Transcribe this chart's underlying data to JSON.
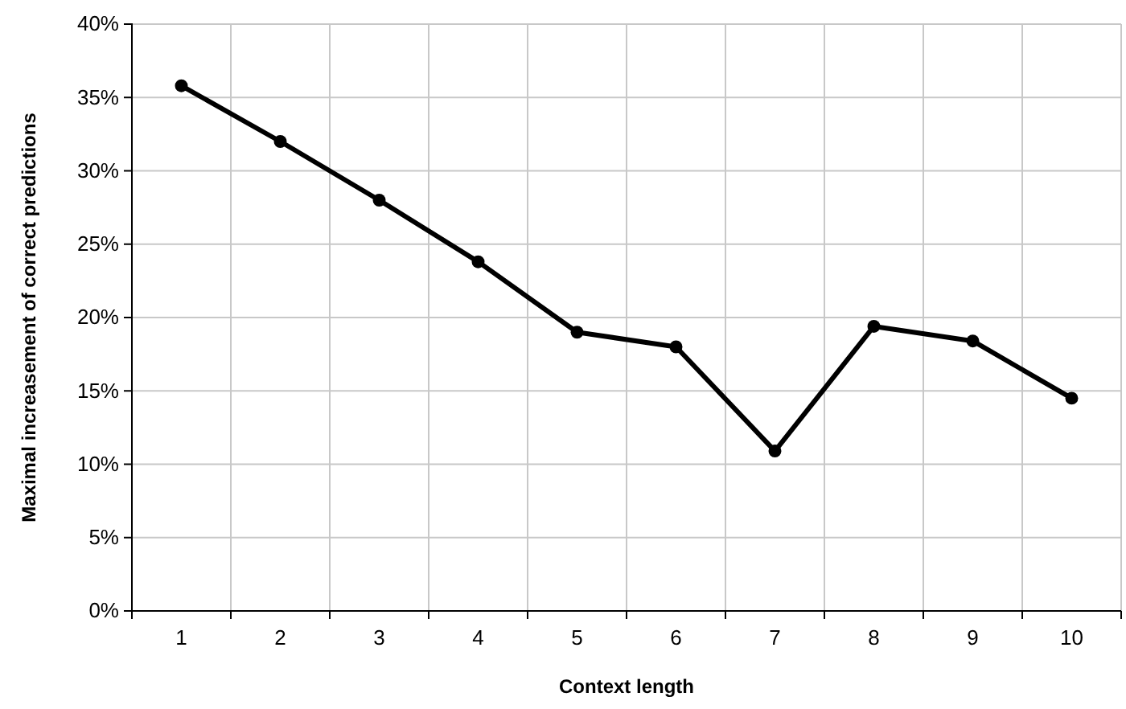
{
  "chart_data": {
    "type": "line",
    "xlabel": "Context length",
    "ylabel": "Maximal increasement of correct predictions",
    "categories": [
      "1",
      "2",
      "3",
      "4",
      "5",
      "6",
      "7",
      "8",
      "9",
      "10"
    ],
    "series": [
      {
        "color": "#000000",
        "values": [
          35.8,
          32,
          28,
          23.8,
          19,
          18,
          10.9,
          19.4,
          18.4,
          14.5
        ]
      }
    ],
    "ylim": [
      0,
      40
    ],
    "yticks": [
      {
        "value": 0,
        "label": "0%"
      },
      {
        "value": 5,
        "label": "5%"
      },
      {
        "value": 10,
        "label": "10%"
      },
      {
        "value": 15,
        "label": "15%"
      },
      {
        "value": 20,
        "label": "20%"
      },
      {
        "value": 25,
        "label": "25%"
      },
      {
        "value": 30,
        "label": "30%"
      },
      {
        "value": 35,
        "label": "35%"
      },
      {
        "value": 40,
        "label": "40%"
      }
    ],
    "grid": true,
    "marker": "circle",
    "line_style": "solid"
  }
}
